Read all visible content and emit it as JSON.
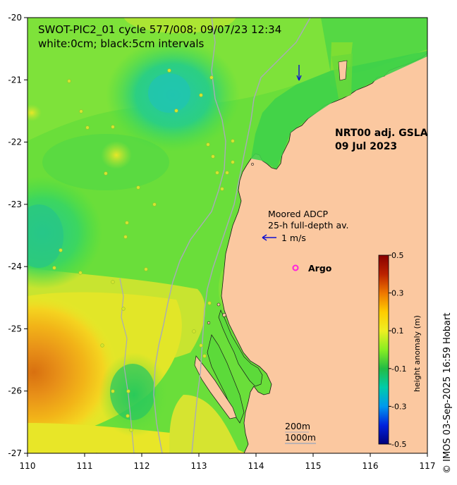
{
  "map": {
    "title_line1": "SWOT-PIC2_01 cycle 577/008; 09/07/23 12:34",
    "title_line2": "white:0cm; black:5cm intervals",
    "product": "NRT00 adj. GSLA",
    "product_date": "09 Jul 2023",
    "adcp_label_1": "Moored ADCP",
    "adcp_label_2": "25-h full-depth av.",
    "adcp_scale_label": "1 m/s",
    "argo_label": "Argo",
    "isobath_label_1": "200m",
    "isobath_label_2": "1000m",
    "credit": "© IMOS 03-Sep-2025 16:59 Hobart",
    "colors": {
      "land": "#fbc8a0",
      "isobath": "#a8aab8",
      "argo": "#ff22dd",
      "adcp_arrow": "#1010d0"
    },
    "x_axis": {
      "min": 110,
      "max": 117,
      "ticks": [
        "110",
        "111",
        "112",
        "113",
        "114",
        "115",
        "116",
        "117"
      ]
    },
    "y_axis": {
      "min": -27,
      "max": -20,
      "ticks": [
        "-20",
        "-21",
        "-22",
        "-23",
        "-24",
        "-25",
        "-26",
        "-27"
      ]
    }
  },
  "colorbar": {
    "title": "height anomaly (m)",
    "min": -0.5,
    "max": 0.5,
    "tick_labels": [
      "0.5",
      "0.3",
      "0.1",
      "-0.1",
      "-0.3",
      "-0.5"
    ],
    "tick_values": [
      0.5,
      0.3,
      0.1,
      -0.1,
      -0.3,
      -0.5
    ],
    "stops": [
      "#00007a",
      "#0022dd",
      "#0099ee",
      "#00ccaa",
      "#22bb44",
      "#88ee22",
      "#eeee22",
      "#ffcc00",
      "#ee7700",
      "#bb2200",
      "#880000"
    ]
  }
}
